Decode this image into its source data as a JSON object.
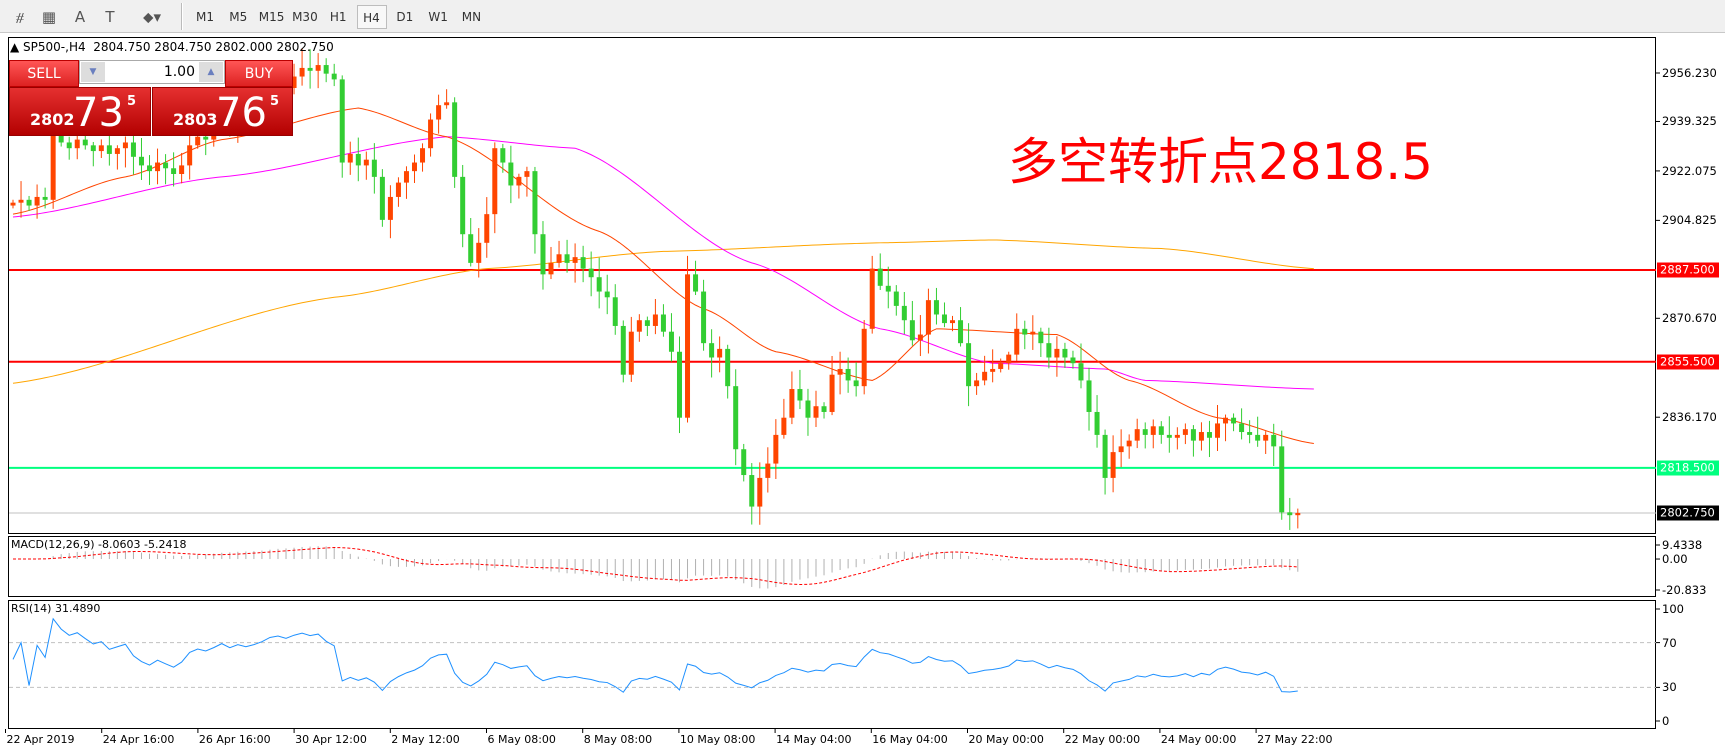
{
  "toolbar": {
    "tools": [
      {
        "name": "elliott-wave-icon",
        "glyph": "⧣"
      },
      {
        "name": "fibonacci-icon",
        "glyph": "▦"
      },
      {
        "name": "text-icon",
        "glyph": "A"
      },
      {
        "name": "text-label-icon",
        "glyph": "T"
      },
      {
        "name": "arrows-icon",
        "glyph": "⬥▾"
      }
    ],
    "timeframes": [
      "M1",
      "M5",
      "M15",
      "M30",
      "H1",
      "H4",
      "D1",
      "W1",
      "MN"
    ],
    "active_timeframe": "H4"
  },
  "chart": {
    "symbol_line": "SP500-,H4  2804.750 2804.750 2802.000 2802.750",
    "annotation": "多空转折点2818.5",
    "price_ticks": [
      "2956.230",
      "2939.325",
      "2922.075",
      "2904.825",
      "2870.670",
      "2836.170"
    ],
    "price_range": [
      2802.75,
      2956.23
    ],
    "levels": [
      {
        "price": 2887.5,
        "label": "2887.500",
        "color": "#ff0000"
      },
      {
        "price": 2855.5,
        "label": "2855.500",
        "color": "#ff0000"
      },
      {
        "price": 2818.5,
        "label": "2818.500",
        "color": "#00ff7f"
      },
      {
        "price": 2802.75,
        "label": "2802.750",
        "color": "#000000"
      }
    ],
    "colors": {
      "bull": "#ff4500",
      "bear": "#32cd32",
      "ma_fast": "#ff4500",
      "ma_mid": "#ff00ff",
      "ma_slow": "#ffa500"
    },
    "closes": [
      2911,
      2912,
      2910,
      2913,
      2912,
      2935,
      2932,
      2930,
      2933,
      2931,
      2929,
      2931,
      2928,
      2930,
      2932,
      2927,
      2924,
      2922,
      2925,
      2923,
      2921,
      2924,
      2931,
      2934,
      2933,
      2936,
      2940,
      2938,
      2941,
      2940,
      2942,
      2945,
      2950,
      2952,
      2951,
      2955,
      2958,
      2957,
      2959,
      2956,
      2954,
      2925,
      2928,
      2924,
      2926,
      2920,
      2905,
      2913,
      2918,
      2922,
      2925,
      2930,
      2940,
      2945,
      2946,
      2920,
      2900,
      2890,
      2897,
      2907,
      2930,
      2925,
      2917,
      2920,
      2922,
      2900,
      2886,
      2890,
      2893,
      2890,
      2892,
      2888,
      2885,
      2880,
      2878,
      2868,
      2851,
      2866,
      2870,
      2868,
      2872,
      2866,
      2859,
      2836,
      2886,
      2880,
      2862,
      2857,
      2860,
      2847,
      2825,
      2816,
      2805,
      2815,
      2820,
      2830,
      2836,
      2846,
      2842,
      2836,
      2840,
      2838,
      2851,
      2853,
      2849,
      2847,
      2867,
      2888,
      2882,
      2880,
      2875,
      2870,
      2863,
      2865,
      2877,
      2872,
      2869,
      2870,
      2862,
      2847,
      2849,
      2852,
      2853,
      2855,
      2858,
      2867,
      2865,
      2866,
      2862,
      2857,
      2860,
      2857,
      2855,
      2849,
      2838,
      2830,
      2815,
      2824,
      2826,
      2828,
      2832,
      2830,
      2833,
      2830,
      2829,
      2830,
      2832,
      2828,
      2831,
      2829,
      2834,
      2836,
      2834,
      2831,
      2830,
      2828,
      2830,
      2826,
      2803,
      2802,
      2802.75
    ],
    "ma_fast": [
      [
        0,
        2907
      ],
      [
        14,
        2920
      ],
      [
        26,
        2933
      ],
      [
        43,
        2944
      ],
      [
        54,
        2934
      ],
      [
        73,
        2901
      ],
      [
        86,
        2874
      ],
      [
        95,
        2859
      ],
      [
        107,
        2849
      ],
      [
        115,
        2867
      ],
      [
        130,
        2865
      ],
      [
        139,
        2849
      ],
      [
        150,
        2836
      ],
      [
        162,
        2827
      ]
    ],
    "ma_mid": [
      [
        0,
        2906
      ],
      [
        26,
        2920
      ],
      [
        54,
        2934
      ],
      [
        70,
        2930
      ],
      [
        92,
        2890
      ],
      [
        108,
        2867
      ],
      [
        122,
        2855
      ],
      [
        136,
        2853
      ],
      [
        141,
        2849
      ],
      [
        162,
        2846
      ]
    ],
    "ma_slow": [
      [
        0,
        2848
      ],
      [
        40,
        2878
      ],
      [
        59,
        2888
      ],
      [
        81,
        2894
      ],
      [
        108,
        2897
      ],
      [
        122,
        2898
      ],
      [
        143,
        2895
      ],
      [
        162,
        2888
      ]
    ]
  },
  "macd": {
    "label": "MACD(12,26,9) -8.0603 -5.2418",
    "ticks": [
      "9.4338",
      "0.00",
      "-20.833"
    ],
    "range": [
      -20.833,
      9.4338
    ]
  },
  "rsi": {
    "label": "RSI(14) 31.4890",
    "ticks": [
      "100",
      "70",
      "30",
      "0"
    ],
    "levels": [
      70,
      30
    ]
  },
  "time_labels": [
    "22 Apr 2019",
    "24 Apr 16:00",
    "26 Apr 16:00",
    "30 Apr 12:00",
    "2 May 12:00",
    "6 May 08:00",
    "8 May 08:00",
    "10 May 08:00",
    "14 May 04:00",
    "16 May 04:00",
    "20 May 00:00",
    "22 May 00:00",
    "24 May 00:00",
    "27 May 22:00"
  ],
  "trade": {
    "sell": "SELL",
    "buy": "BUY",
    "lot": "1.00",
    "bid_small": "2802",
    "bid_big": "73",
    "bid_sup": "5",
    "ask_small": "2803",
    "ask_big": "76",
    "ask_sup": "5"
  }
}
